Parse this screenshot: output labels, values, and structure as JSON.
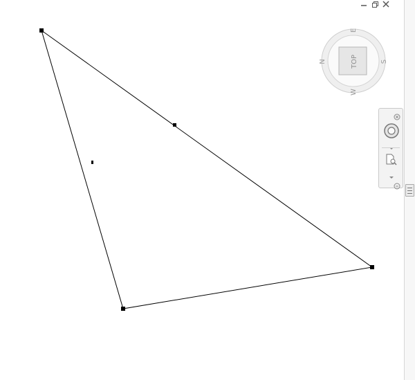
{
  "window": {
    "controls": [
      {
        "name": "minimize",
        "icon": "minimize-icon"
      },
      {
        "name": "restore",
        "icon": "restore-icon"
      },
      {
        "name": "close",
        "icon": "close-icon"
      }
    ]
  },
  "viewcube": {
    "face_label": "TOP",
    "compass": {
      "north": "N",
      "east": "E",
      "south": "S",
      "west": "W"
    }
  },
  "navigation_bar": {
    "tools": [
      {
        "name": "steering-wheel",
        "icon": "steering-wheel-icon"
      },
      {
        "name": "zoom-extents",
        "icon": "zoom-page-icon"
      }
    ]
  },
  "drawing": {
    "shape": "triangle",
    "stroke_color": "#000000",
    "background": "#ffffff"
  }
}
